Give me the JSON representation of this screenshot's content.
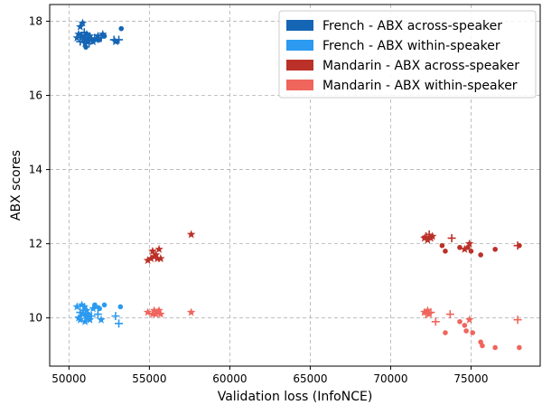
{
  "chart_data": {
    "type": "scatter",
    "xlabel": "Validation loss (InfoNCE)",
    "ylabel": "ABX scores",
    "xlim": [
      48800,
      79300
    ],
    "ylim": [
      8.7,
      18.45
    ],
    "xticks": [
      50000,
      55000,
      60000,
      65000,
      70000,
      75000
    ],
    "xtick_labels": [
      "50000",
      "55000",
      "60000",
      "65000",
      "70000",
      "75000"
    ],
    "yticks": [
      10,
      12,
      14,
      16,
      18
    ],
    "ytick_labels": [
      "10",
      "12",
      "14",
      "16",
      "18"
    ],
    "grid": true,
    "legend_position": "top-right",
    "series": [
      {
        "name": "French - ABX across-speaker",
        "color": "#1565b5",
        "points": [
          [
            50500,
            17.55,
            "*"
          ],
          [
            50600,
            17.65,
            "*"
          ],
          [
            50700,
            17.45,
            "+"
          ],
          [
            50700,
            17.85,
            "*"
          ],
          [
            50800,
            17.6,
            "*"
          ],
          [
            50850,
            17.95,
            "*"
          ],
          [
            50900,
            17.5,
            "*"
          ],
          [
            50950,
            17.7,
            "+"
          ],
          [
            51000,
            17.4,
            "*"
          ],
          [
            51000,
            17.55,
            "*"
          ],
          [
            51050,
            17.3,
            "o"
          ],
          [
            51100,
            17.65,
            "*"
          ],
          [
            51150,
            17.45,
            "*"
          ],
          [
            51200,
            17.55,
            "*"
          ],
          [
            51250,
            17.4,
            "+"
          ],
          [
            51300,
            17.6,
            "*"
          ],
          [
            51400,
            17.5,
            "*"
          ],
          [
            51500,
            17.45,
            "*"
          ],
          [
            51600,
            17.55,
            "+"
          ],
          [
            51700,
            17.5,
            "*"
          ],
          [
            51800,
            17.6,
            "*"
          ],
          [
            51900,
            17.5,
            "o"
          ],
          [
            52000,
            17.55,
            "+"
          ],
          [
            52100,
            17.65,
            "*"
          ],
          [
            52200,
            17.6,
            "o"
          ],
          [
            52900,
            17.45,
            "*"
          ],
          [
            53000,
            17.45,
            "o"
          ],
          [
            53100,
            17.5,
            "+"
          ],
          [
            53250,
            17.8,
            "o"
          ],
          [
            52800,
            17.5,
            "+"
          ]
        ]
      },
      {
        "name": "French - ABX within-speaker",
        "color": "#2b9af0",
        "points": [
          [
            50500,
            10.3,
            "*"
          ],
          [
            50600,
            10.0,
            "*"
          ],
          [
            50700,
            10.15,
            "+"
          ],
          [
            50700,
            9.95,
            "*"
          ],
          [
            50800,
            10.35,
            "*"
          ],
          [
            50850,
            10.1,
            "*"
          ],
          [
            50900,
            10.2,
            "+"
          ],
          [
            50950,
            10.3,
            "*"
          ],
          [
            51000,
            9.9,
            "*"
          ],
          [
            51050,
            10.05,
            "o"
          ],
          [
            51100,
            10.2,
            "*"
          ],
          [
            51150,
            10.0,
            "*"
          ],
          [
            51200,
            10.1,
            "o"
          ],
          [
            51300,
            9.95,
            "*"
          ],
          [
            51400,
            10.05,
            "+"
          ],
          [
            51500,
            10.25,
            "*"
          ],
          [
            51600,
            10.35,
            "o"
          ],
          [
            51700,
            10.3,
            "*"
          ],
          [
            51800,
            10.1,
            "+"
          ],
          [
            51900,
            10.25,
            "o"
          ],
          [
            52000,
            9.95,
            "*"
          ],
          [
            52200,
            10.35,
            "o"
          ],
          [
            52900,
            10.05,
            "+"
          ],
          [
            53100,
            9.85,
            "+"
          ],
          [
            53200,
            10.3,
            "o"
          ]
        ]
      },
      {
        "name": "Mandarin - ABX across-speaker",
        "color": "#bb3129",
        "points": [
          [
            54900,
            11.55,
            "*"
          ],
          [
            55100,
            11.6,
            "*"
          ],
          [
            55200,
            11.8,
            "*"
          ],
          [
            55300,
            11.65,
            "*"
          ],
          [
            55400,
            11.7,
            "*"
          ],
          [
            55500,
            11.6,
            "*"
          ],
          [
            55600,
            11.85,
            "*"
          ],
          [
            55700,
            11.6,
            "*"
          ],
          [
            57600,
            12.25,
            "*"
          ],
          [
            72100,
            12.15,
            "*"
          ],
          [
            72200,
            12.2,
            "+"
          ],
          [
            72300,
            12.1,
            "*"
          ],
          [
            72400,
            12.25,
            "+"
          ],
          [
            72500,
            12.15,
            "*"
          ],
          [
            72600,
            12.2,
            "*"
          ],
          [
            73200,
            11.95,
            "o"
          ],
          [
            73400,
            11.8,
            "o"
          ],
          [
            73800,
            12.15,
            "+"
          ],
          [
            74300,
            11.9,
            "o"
          ],
          [
            74600,
            11.85,
            "*"
          ],
          [
            74800,
            11.9,
            "o"
          ],
          [
            74900,
            12.0,
            "*"
          ],
          [
            75000,
            11.8,
            "o"
          ],
          [
            75600,
            11.7,
            "o"
          ],
          [
            76500,
            11.85,
            "o"
          ],
          [
            77900,
            11.95,
            "+"
          ],
          [
            78000,
            11.95,
            "o"
          ]
        ]
      },
      {
        "name": "Mandarin - ABX within-speaker",
        "color": "#f0655c",
        "points": [
          [
            54900,
            10.15,
            "*"
          ],
          [
            55200,
            10.1,
            "*"
          ],
          [
            55300,
            10.2,
            "*"
          ],
          [
            55400,
            10.1,
            "*"
          ],
          [
            55500,
            10.15,
            "*"
          ],
          [
            55600,
            10.2,
            "*"
          ],
          [
            55700,
            10.1,
            "*"
          ],
          [
            57600,
            10.15,
            "*"
          ],
          [
            72100,
            10.15,
            "*"
          ],
          [
            72200,
            10.1,
            "+"
          ],
          [
            72300,
            10.2,
            "*"
          ],
          [
            72400,
            10.1,
            "*"
          ],
          [
            72500,
            10.15,
            "+"
          ],
          [
            72800,
            9.9,
            "+"
          ],
          [
            73400,
            9.6,
            "o"
          ],
          [
            73700,
            10.1,
            "+"
          ],
          [
            74300,
            9.9,
            "o"
          ],
          [
            74600,
            9.8,
            "o"
          ],
          [
            74700,
            9.65,
            "o"
          ],
          [
            74900,
            9.95,
            "*"
          ],
          [
            75100,
            9.6,
            "o"
          ],
          [
            75600,
            9.35,
            "o"
          ],
          [
            75700,
            9.25,
            "o"
          ],
          [
            76500,
            9.2,
            "o"
          ],
          [
            77900,
            9.95,
            "+"
          ],
          [
            78000,
            9.2,
            "o"
          ]
        ]
      }
    ]
  }
}
